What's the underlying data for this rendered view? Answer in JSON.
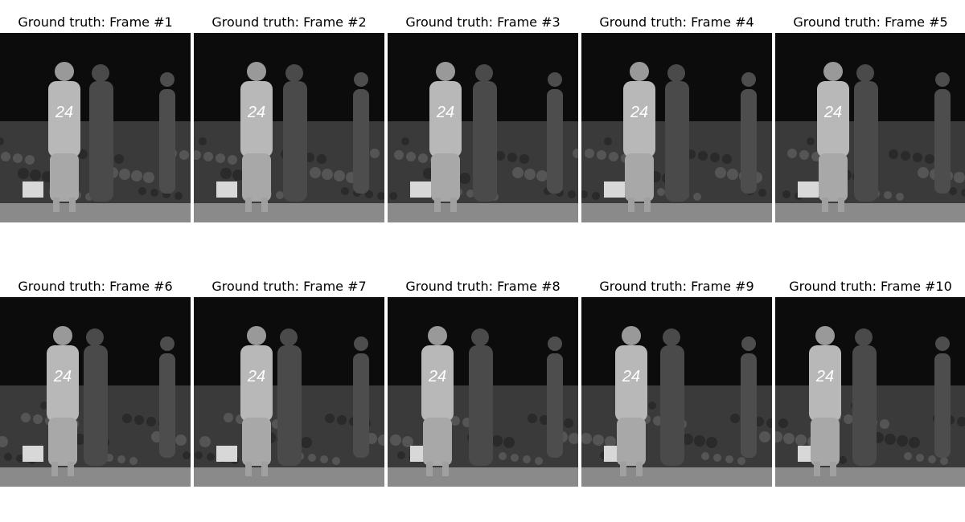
{
  "figure": {
    "frames": [
      {
        "title": "Ground truth: Frame #1"
      },
      {
        "title": "Ground truth: Frame #2"
      },
      {
        "title": "Ground truth: Frame #3"
      },
      {
        "title": "Ground truth: Frame #4"
      },
      {
        "title": "Ground truth: Frame #5"
      },
      {
        "title": "Ground truth: Frame #6"
      },
      {
        "title": "Ground truth: Frame #7"
      },
      {
        "title": "Ground truth: Frame #8"
      },
      {
        "title": "Ground truth: Frame #9"
      },
      {
        "title": "Ground truth: Frame #10"
      }
    ],
    "jersey_number": "24",
    "colors": {
      "background": "#ffffff",
      "arena": "#0c0c0c",
      "crowd": "#3a3a3a",
      "floor": "#8a8a8a",
      "player_light": "#b8b8b8",
      "player_dark": "#4a4a4a"
    }
  }
}
